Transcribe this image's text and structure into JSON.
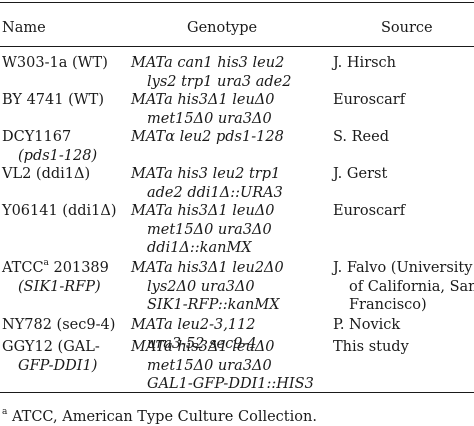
{
  "table": {
    "columns": {
      "name": "Name",
      "genotype": "Genotype",
      "source": "Source"
    },
    "rows": [
      {
        "name": [
          "W303-1a (WT)"
        ],
        "genotype": [
          "MATa can1 his3 leu2",
          "lys2 trp1 ura3 ade2"
        ],
        "source": [
          "J. Hirsch"
        ]
      },
      {
        "name": [
          "BY 4741 (WT)"
        ],
        "genotype": [
          "MATa his3Δ1 leuΔ0",
          "met15Δ0 ura3Δ0"
        ],
        "source": [
          "Euroscarf"
        ]
      },
      {
        "name": [
          "DCY1167",
          "(pds1-128)"
        ],
        "genotype": [
          "MATα leu2 pds1-128"
        ],
        "source": [
          "S. Reed"
        ]
      },
      {
        "name": [
          "VL2 (ddi1Δ)"
        ],
        "genotype": [
          "MATa his3 leu2 trp1",
          "ade2 ddi1Δ::URA3"
        ],
        "source": [
          "J. Gerst"
        ]
      },
      {
        "name": [
          "Y06141 (ddi1Δ)"
        ],
        "genotype": [
          "MATa his3Δ1 leuΔ0",
          "met15Δ0 ura3Δ0",
          "ddi1Δ::kanMX"
        ],
        "source": [
          "Euroscarf"
        ]
      },
      {
        "name": [
          "ATCC",
          "a",
          " 201389",
          "(SIK1-RFP)"
        ],
        "genotype": [
          "MATa his3Δ1 leu2Δ0",
          "lys2Δ0 ura3Δ0",
          "SIK1-RFP::kanMX"
        ],
        "source": [
          "J. Falvo (University",
          "of California, San",
          "Francisco)"
        ]
      },
      {
        "name": [
          "NY782 (sec9-4)"
        ],
        "genotype": [
          "MATa leu2-3,112",
          "ura3-52 sec9-4"
        ],
        "source": [
          "P. Novick"
        ]
      },
      {
        "name": [
          "GGY12 (GAL-",
          "GFP-DDI1)"
        ],
        "genotype": [
          "MATa his3Δ1 leuΔ0",
          "met15Δ0 ura3Δ0",
          "GAL1-GFP-DDI1::HIS3"
        ],
        "source": [
          "This study"
        ]
      }
    ]
  },
  "footnote": {
    "mark": "a",
    "text": " ATCC, American Type Culture Collection."
  }
}
